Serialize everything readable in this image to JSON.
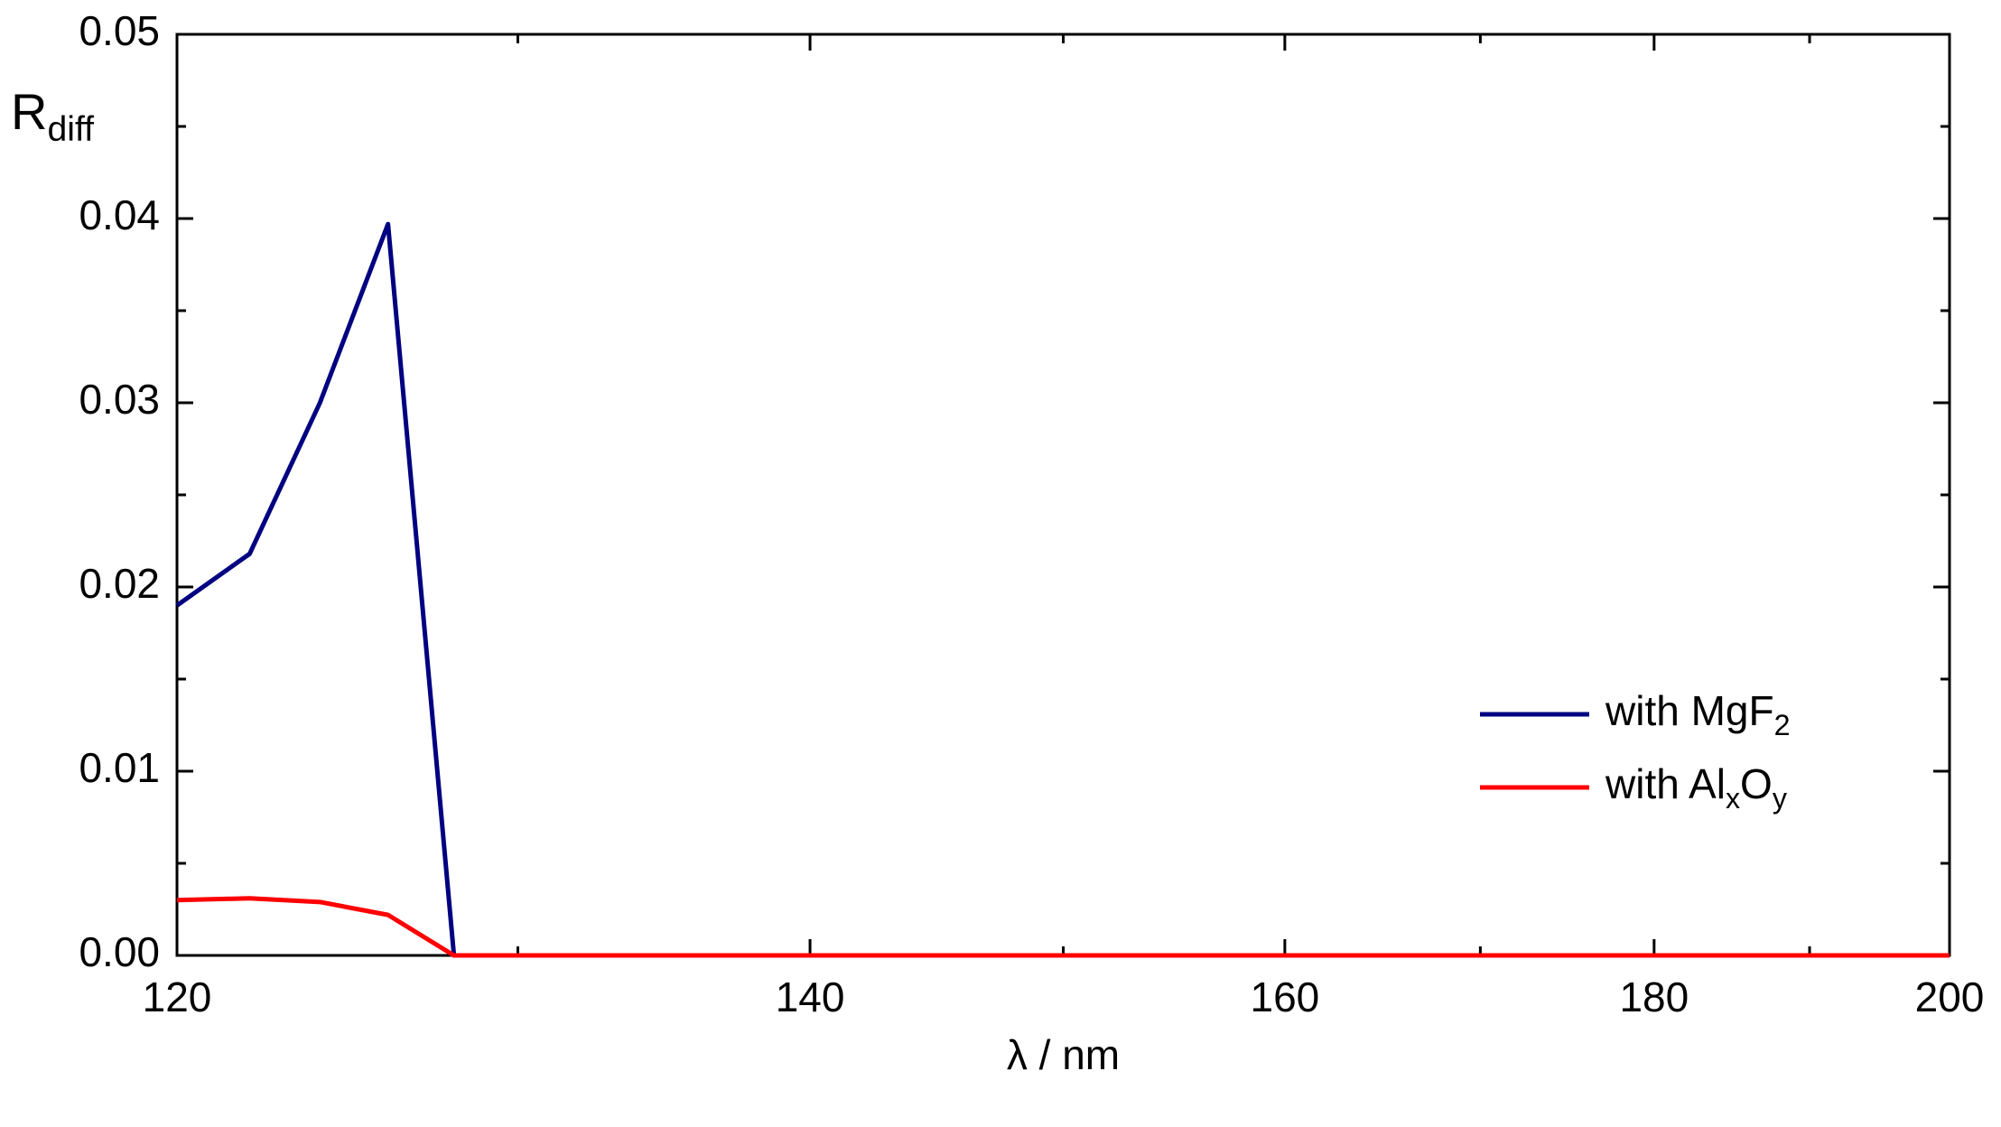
{
  "chart_data": {
    "type": "line",
    "y_label": [
      "R",
      "diff"
    ],
    "x_label": "λ / nm",
    "x": [
      120,
      122,
      124,
      126,
      128,
      200
    ],
    "series": [
      {
        "name": [
          "with MgF",
          "2"
        ],
        "color": "#000080",
        "values": [
          0.019,
          0.0218,
          0.03,
          0.0397,
          0,
          0
        ]
      },
      {
        "name": [
          "with Al",
          "x",
          "O",
          "y"
        ],
        "color": "#ff0000",
        "values": [
          0.003,
          0.0031,
          0.0029,
          0.0022,
          0,
          0
        ]
      }
    ],
    "xscale": "reciprocal",
    "xlim": [
      120,
      200
    ],
    "xticks": [
      120,
      140,
      160,
      180,
      200
    ],
    "xminorticks": [
      130,
      150,
      170,
      190
    ],
    "ylim": [
      0,
      0.05
    ],
    "yticks": [
      {
        "value": 0,
        "label": "0.00"
      },
      {
        "value": 0.01,
        "label": "0.01"
      },
      {
        "value": 0.02,
        "label": "0.02"
      },
      {
        "value": 0.03,
        "label": "0.03"
      },
      {
        "value": 0.04,
        "label": "0.04"
      },
      {
        "value": 0.05,
        "label": "0.05"
      }
    ],
    "yminorticks": [
      0.005,
      0.015,
      0.025,
      0.035,
      0.045
    ],
    "grid": false,
    "legend": "lower right"
  }
}
